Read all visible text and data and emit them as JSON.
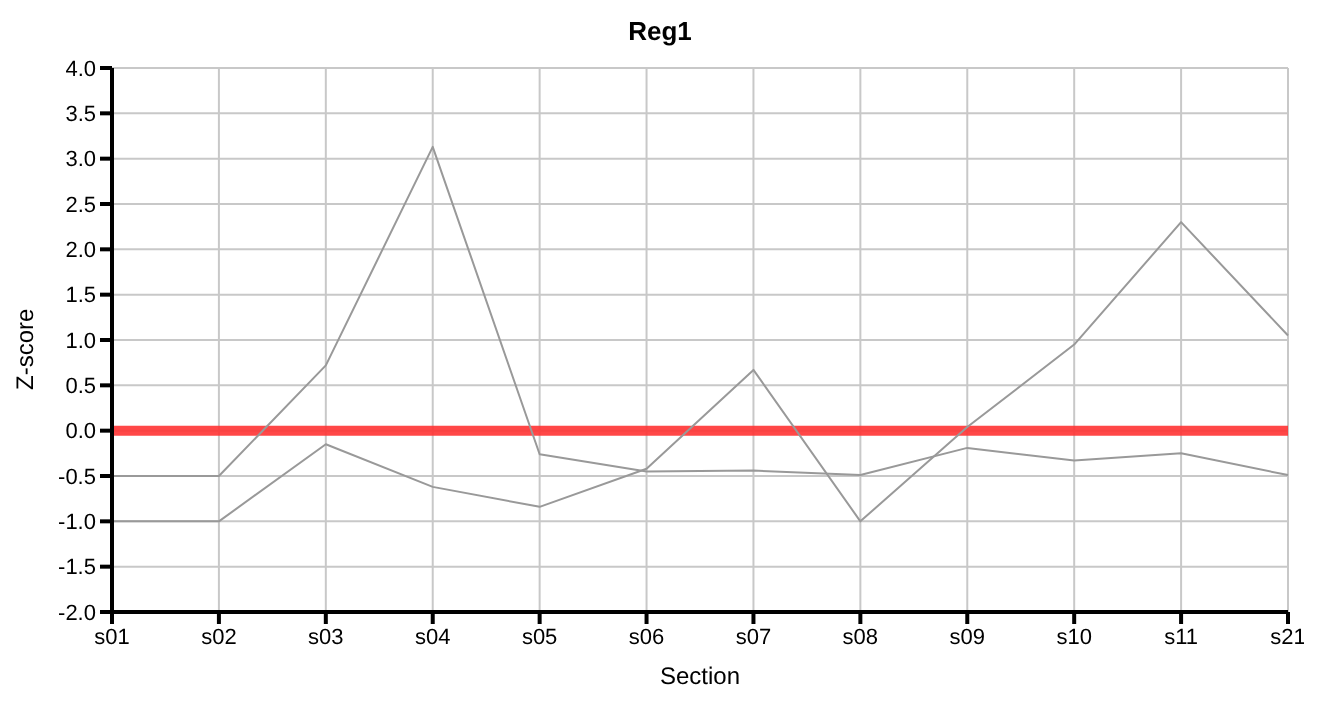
{
  "chart_data": {
    "type": "line",
    "title": "Reg1",
    "xlabel": "Section",
    "ylabel": "Z-score",
    "categories": [
      "s01",
      "s02",
      "s03",
      "s04",
      "s05",
      "s06",
      "s07",
      "s08",
      "s09",
      "s10",
      "s11",
      "s21"
    ],
    "series": [
      {
        "color": "#999999",
        "values": [
          -0.5,
          -0.5,
          0.72,
          3.13,
          -0.26,
          -0.45,
          -0.44,
          -0.49,
          -0.19,
          -0.33,
          -0.25,
          -0.49
        ]
      },
      {
        "color": "#999999",
        "values": [
          -1.0,
          -1.0,
          -0.15,
          -0.62,
          -0.84,
          -0.42,
          0.67,
          -1.0,
          0.04,
          0.95,
          2.3,
          1.05
        ]
      }
    ],
    "ylim": [
      -2,
      4
    ],
    "yticks": [
      {
        "value": -2,
        "label": "-2.0"
      },
      {
        "value": -1.5,
        "label": "-1.5"
      },
      {
        "value": -1,
        "label": "-1.0"
      },
      {
        "value": -0.5,
        "label": "-0.5"
      },
      {
        "value": 0,
        "label": "0.0"
      },
      {
        "value": 0.5,
        "label": "0.5"
      },
      {
        "value": 1,
        "label": "1.0"
      },
      {
        "value": 1.5,
        "label": "1.5"
      },
      {
        "value": 2,
        "label": "2.0"
      },
      {
        "value": 2.5,
        "label": "2.5"
      },
      {
        "value": 3,
        "label": "3.0"
      },
      {
        "value": 3.5,
        "label": "3.5"
      },
      {
        "value": 4,
        "label": "4.0"
      }
    ],
    "ref_lines": [
      {
        "axis": "y",
        "value": 0,
        "color": "#ff3333"
      }
    ],
    "grid": true,
    "legend": false,
    "marker": "none",
    "line_style": "solid"
  }
}
